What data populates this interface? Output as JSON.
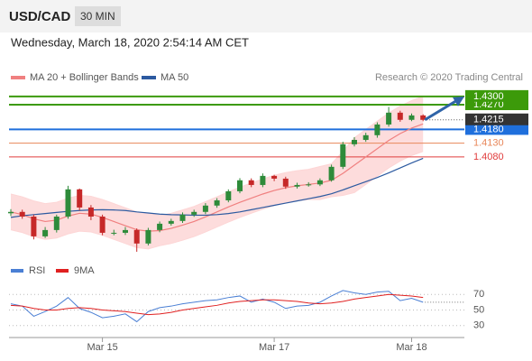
{
  "header": {
    "title": "USD/CAD",
    "timeframe": "30 MIN",
    "date": "Wednesday, March 18, 2020 2:54:14 AM CET",
    "source": "Research © 2020 Trading Central"
  },
  "chart_data": [
    {
      "type": "candlestick",
      "categories": [
        null,
        null,
        null,
        null,
        null,
        null,
        null,
        null,
        "Mar 15",
        null,
        null,
        null,
        null,
        null,
        null,
        null,
        null,
        null,
        null,
        null,
        null,
        null,
        null,
        "Mar 17",
        null,
        null,
        null,
        null,
        null,
        null,
        null,
        null,
        null,
        null,
        null,
        "Mar 18",
        null
      ],
      "open": [
        1.3875,
        1.388,
        1.3863,
        1.3791,
        1.3814,
        1.3863,
        1.3962,
        1.3896,
        1.3863,
        1.3804,
        1.3804,
        1.3814,
        1.3765,
        1.3814,
        1.3837,
        1.3847,
        1.387,
        1.388,
        1.3903,
        1.3922,
        1.3955,
        1.3995,
        1.3978,
        1.4011,
        1.4001,
        1.3972,
        1.3978,
        1.398,
        1.3995,
        1.4044,
        1.4126,
        1.4142,
        1.4159,
        1.4198,
        1.4241,
        1.4215,
        1.4231
      ],
      "high": [
        1.389,
        1.3888,
        1.387,
        1.3825,
        1.387,
        1.3975,
        1.3965,
        1.3905,
        1.387,
        1.3815,
        1.3825,
        1.382,
        1.3822,
        1.3845,
        1.3855,
        1.3878,
        1.3888,
        1.3912,
        1.393,
        1.3962,
        1.4003,
        1.4002,
        1.402,
        1.4015,
        1.4008,
        1.3986,
        1.3988,
        1.4002,
        1.4052,
        1.4135,
        1.4152,
        1.4168,
        1.4206,
        1.4262,
        1.4248,
        1.4238,
        1.4235
      ],
      "low": [
        1.3865,
        1.3855,
        1.378,
        1.3785,
        1.3805,
        1.3855,
        1.3885,
        1.385,
        1.3795,
        1.3795,
        1.3796,
        1.3735,
        1.3758,
        1.3806,
        1.383,
        1.384,
        1.3862,
        1.3872,
        1.3895,
        1.3915,
        1.3948,
        1.397,
        1.397,
        1.3992,
        1.3964,
        1.3965,
        1.3972,
        1.3974,
        1.399,
        1.4036,
        1.4118,
        1.4135,
        1.415,
        1.419,
        1.4208,
        1.421,
        1.421
      ],
      "close": [
        1.388,
        1.3863,
        1.3791,
        1.3814,
        1.3863,
        1.3962,
        1.3896,
        1.3863,
        1.3804,
        1.3804,
        1.3814,
        1.3765,
        1.3814,
        1.3837,
        1.3847,
        1.387,
        1.388,
        1.3903,
        1.3922,
        1.3955,
        1.3995,
        1.3978,
        1.4011,
        1.4001,
        1.3972,
        1.3978,
        1.398,
        1.3995,
        1.4044,
        1.4126,
        1.4142,
        1.4159,
        1.4198,
        1.4241,
        1.4215,
        1.4231,
        1.4215
      ],
      "up_color": "#2e8b3a",
      "down_color": "#c62828",
      "overlays": [
        {
          "name": "MA 20 + Bollinger Bands",
          "color": "#f08080",
          "band_color": "#fdd6d6",
          "values": [
            1.388,
            1.387,
            1.3855,
            1.3845,
            1.385,
            1.3865,
            1.3875,
            1.3872,
            1.386,
            1.3845,
            1.383,
            1.3815,
            1.381,
            1.3812,
            1.382,
            1.3832,
            1.3845,
            1.3862,
            1.388,
            1.3898,
            1.3915,
            1.393,
            1.3945,
            1.3958,
            1.3968,
            1.3975,
            1.398,
            1.3985,
            1.3995,
            1.402,
            1.405,
            1.408,
            1.411,
            1.414,
            1.4165,
            1.4185,
            1.42
          ],
          "upper": [
            1.3945,
            1.3935,
            1.392,
            1.391,
            1.3915,
            1.393,
            1.394,
            1.3937,
            1.3925,
            1.391,
            1.3895,
            1.388,
            1.3875,
            1.3867,
            1.3875,
            1.3887,
            1.39,
            1.3917,
            1.3935,
            1.3953,
            1.397,
            1.3985,
            1.4,
            1.4013,
            1.4023,
            1.403,
            1.4035,
            1.4045,
            1.4055,
            1.41,
            1.415,
            1.418,
            1.421,
            1.424,
            1.4265,
            1.4285,
            1.43
          ],
          "lower": [
            1.3815,
            1.3805,
            1.379,
            1.378,
            1.3785,
            1.38,
            1.381,
            1.3807,
            1.3795,
            1.378,
            1.3765,
            1.375,
            1.3745,
            1.3757,
            1.3765,
            1.3777,
            1.379,
            1.3807,
            1.3825,
            1.3843,
            1.386,
            1.3875,
            1.389,
            1.3903,
            1.3913,
            1.392,
            1.3925,
            1.3925,
            1.3935,
            1.394,
            1.395,
            1.398,
            1.401,
            1.404,
            1.4065,
            1.4085,
            1.41
          ]
        },
        {
          "name": "MA 50",
          "color": "#2c5aa0",
          "values": [
            1.386,
            1.3866,
            1.387,
            1.3874,
            1.3878,
            1.3882,
            1.3885,
            1.3887,
            1.3888,
            1.3887,
            1.3885,
            1.388,
            1.3876,
            1.3872,
            1.387,
            1.3869,
            1.3868,
            1.3868,
            1.387,
            1.3874,
            1.388,
            1.3888,
            1.3896,
            1.3904,
            1.3912,
            1.392,
            1.3928,
            1.3936,
            1.3946,
            1.396,
            1.3975,
            1.399,
            1.4005,
            1.4022,
            1.404,
            1.4058,
            1.4075
          ]
        }
      ],
      "levels": [
        {
          "value": 1.43,
          "label": "1.4300",
          "color": "#3c9a0a",
          "style": "box"
        },
        {
          "value": 1.427,
          "label": "1.4270",
          "color": "#3c9a0a",
          "style": "box"
        },
        {
          "value": 1.418,
          "label": "1.4180",
          "color": "#1f6fdc",
          "style": "box"
        },
        {
          "value": 1.413,
          "label": "1.4130",
          "color": "#e8875a",
          "style": "text"
        },
        {
          "value": 1.408,
          "label": "1.4080",
          "color": "#e03c3c",
          "style": "text"
        }
      ],
      "current": {
        "value": 1.4215,
        "label": "1.4215",
        "color": "#333333"
      },
      "arrow_color": "#2f64a8",
      "ylim": [
        1.3725,
        1.4339
      ]
    },
    {
      "type": "line",
      "series": [
        {
          "name": "RSI",
          "color": "#4a7fd4",
          "values": [
            58,
            55,
            42,
            48,
            55,
            66,
            52,
            47,
            40,
            42,
            45,
            35,
            48,
            53,
            55,
            58,
            60,
            62,
            63,
            66,
            68,
            60,
            64,
            60,
            52,
            55,
            56,
            60,
            68,
            75,
            72,
            70,
            73,
            74,
            62,
            65,
            60
          ]
        },
        {
          "name": "9MA",
          "color": "#e02020",
          "values": [
            56,
            55,
            52,
            50,
            50,
            52,
            53,
            52,
            50,
            49,
            48,
            46,
            44,
            45,
            47,
            50,
            52,
            54,
            56,
            59,
            61,
            62,
            63,
            63,
            62,
            61,
            59,
            58,
            59,
            61,
            64,
            66,
            68,
            70,
            69,
            68,
            66
          ]
        }
      ],
      "ylim": [
        17,
        83
      ],
      "yticks": [
        70,
        50,
        30
      ],
      "grid": true
    }
  ]
}
